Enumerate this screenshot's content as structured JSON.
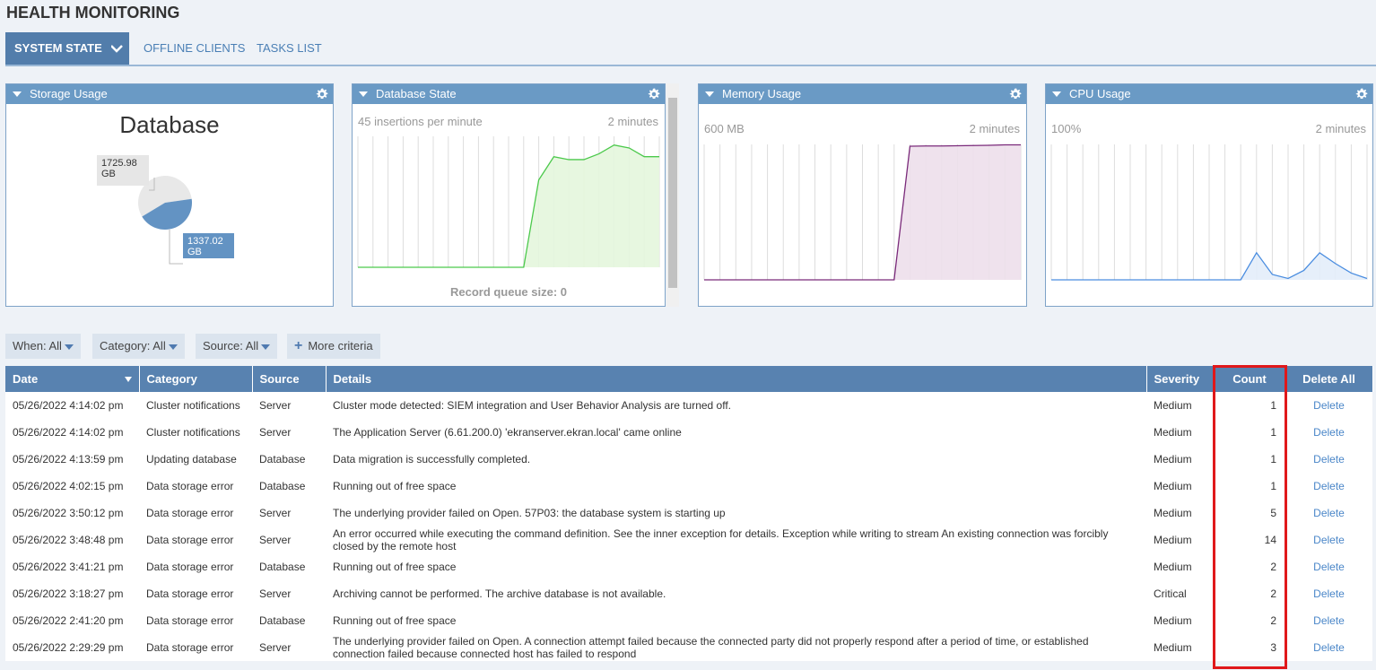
{
  "header": {
    "title": "HEALTH MONITORING"
  },
  "tabs": [
    "SYSTEM STATE",
    "OFFLINE CLIENTS",
    "TASKS LIST"
  ],
  "widgets": [
    {
      "title": "Storage Usage",
      "type": "pie",
      "heading": "Database",
      "slices": [
        {
          "value": 1725.98,
          "label": "1725.98 GB",
          "color": "#e8e8e8"
        },
        {
          "value": 1337.02,
          "label": "1337.02 GB",
          "color": "#6393c3"
        }
      ]
    },
    {
      "title": "Database State",
      "type": "area",
      "scale_label": "45 insertions per minute",
      "span_label": "2 minutes",
      "ylim": [
        0,
        45
      ],
      "color": "#4cc94c",
      "fill": "#e4f6dd",
      "values": [
        0,
        0,
        0,
        0,
        0,
        0,
        0,
        0,
        0,
        0,
        0,
        0,
        30,
        38,
        37,
        37,
        39,
        42,
        41,
        38,
        38
      ],
      "footer": "Record queue size: 0"
    },
    {
      "title": "Memory Usage",
      "type": "area",
      "scale_label": "600 MB",
      "span_label": "2 minutes",
      "ylim": [
        0,
        600
      ],
      "color": "#7a2a7a",
      "fill": "#eddfeb",
      "values": [
        0,
        0,
        0,
        0,
        0,
        0,
        0,
        0,
        0,
        0,
        0,
        0,
        0,
        592,
        593,
        593,
        594,
        595,
        596,
        598,
        598
      ]
    },
    {
      "title": "CPU Usage",
      "type": "area",
      "scale_label": "100%",
      "span_label": "2 minutes",
      "ylim": [
        0,
        100
      ],
      "color": "#4a8de0",
      "fill": "#e3edf9",
      "values": [
        0,
        0,
        0,
        0,
        0,
        0,
        0,
        0,
        0,
        0,
        0,
        0,
        0,
        20,
        4,
        1,
        7,
        20,
        12,
        5,
        1
      ]
    }
  ],
  "filters": [
    "When: All",
    "Category: All",
    "Source: All",
    "More criteria"
  ],
  "table": {
    "columns": [
      "Date",
      "Category",
      "Source",
      "Details",
      "Severity",
      "Count",
      "Delete All"
    ],
    "rows": [
      [
        "05/26/2022 4:14:02 pm",
        "Cluster notifications",
        "Server",
        "Cluster mode detected: SIEM integration and User Behavior Analysis are turned off.",
        "Medium",
        1,
        "Delete"
      ],
      [
        "05/26/2022 4:14:02 pm",
        "Cluster notifications",
        "Server",
        "The Application Server (6.61.200.0) 'ekranserver.ekran.local' came online",
        "Medium",
        1,
        "Delete"
      ],
      [
        "05/26/2022 4:13:59 pm",
        "Updating database",
        "Database",
        "Data migration is successfully completed.",
        "Medium",
        1,
        "Delete"
      ],
      [
        "05/26/2022 4:02:15 pm",
        "Data storage error",
        "Database",
        "Running out of free space",
        "Medium",
        1,
        "Delete"
      ],
      [
        "05/26/2022 3:50:12 pm",
        "Data storage error",
        "Server",
        "The underlying provider failed on Open. 57P03: the database system is starting up",
        "Medium",
        5,
        "Delete"
      ],
      [
        "05/26/2022 3:48:48 pm",
        "Data storage error",
        "Server",
        "An error occurred while executing the command definition. See the inner exception for details. Exception while writing to stream An existing connection was forcibly closed by the remote host",
        "Medium",
        14,
        "Delete"
      ],
      [
        "05/26/2022 3:41:21 pm",
        "Data storage error",
        "Database",
        "Running out of free space",
        "Medium",
        2,
        "Delete"
      ],
      [
        "05/26/2022 3:18:27 pm",
        "Data storage error",
        "Server",
        "Archiving cannot be performed. The archive database is not available.",
        "Critical",
        2,
        "Delete"
      ],
      [
        "05/26/2022 2:41:20 pm",
        "Data storage error",
        "Database",
        "Running out of free space",
        "Medium",
        2,
        "Delete"
      ],
      [
        "05/26/2022 2:29:29 pm",
        "Data storage error",
        "Server",
        "The underlying provider failed on Open. A connection attempt failed because the connected party did not properly respond after a period of time, or established connection failed because connected host has failed to respond",
        "Medium",
        3,
        "Delete"
      ]
    ]
  }
}
